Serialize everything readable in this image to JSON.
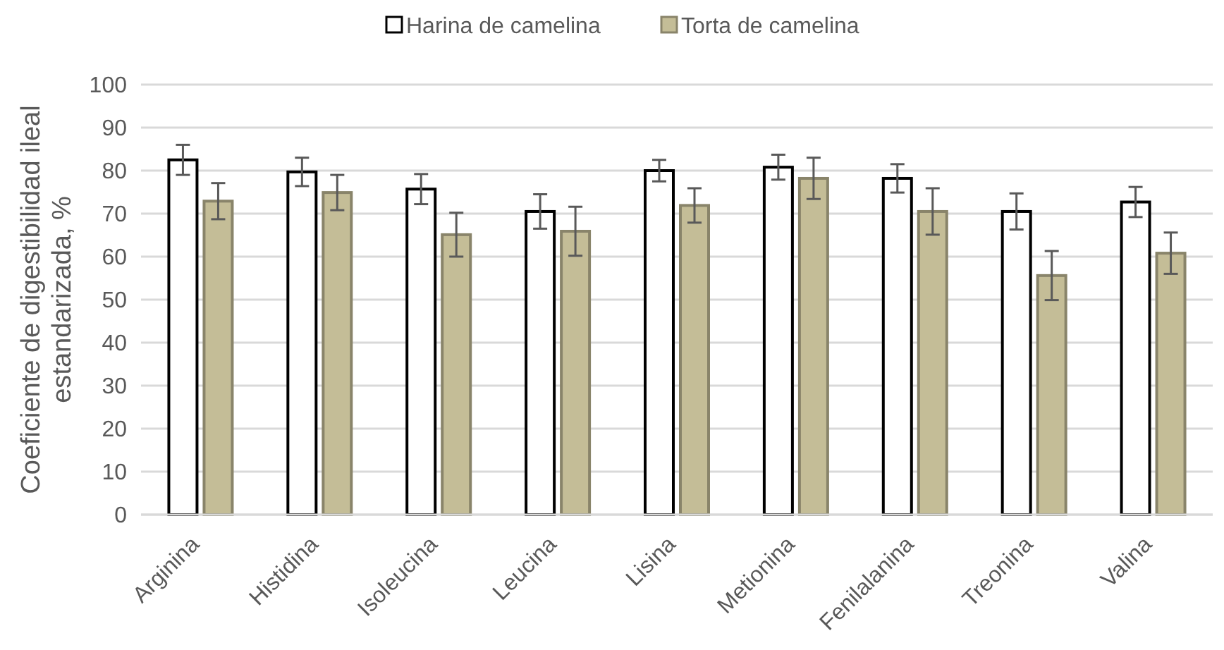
{
  "chart_data": {
    "type": "bar",
    "ylabel": "Coeficiente de digestibilidad ileal estandarizada, %",
    "categories": [
      "Arginina",
      "Histidina",
      "Isoleucina",
      "Leucina",
      "Lisina",
      "Metionina",
      "Fenilalanina",
      "Treonina",
      "Valina"
    ],
    "series": [
      {
        "name": "Harina de camelina",
        "color": "#ffffff",
        "values": [
          82.5,
          79.7,
          75.7,
          70.5,
          80,
          80.8,
          78.2,
          70.5,
          72.7
        ],
        "errors": [
          3.5,
          3.3,
          3.5,
          4,
          2.5,
          2.9,
          3.3,
          4.2,
          3.5
        ]
      },
      {
        "name": "Torta de camelina",
        "color": "#c4bd97",
        "values": [
          72.9,
          74.9,
          65.1,
          65.9,
          71.9,
          78.2,
          70.5,
          55.6,
          60.8
        ],
        "errors": [
          4.2,
          4.1,
          5.1,
          5.7,
          4,
          4.8,
          5.4,
          5.7,
          4.8
        ]
      }
    ],
    "ylim": [
      0,
      100
    ],
    "yticks": [
      0,
      10,
      20,
      30,
      40,
      50,
      60,
      70,
      80,
      90,
      100
    ],
    "grid": "y",
    "legend": "top"
  }
}
